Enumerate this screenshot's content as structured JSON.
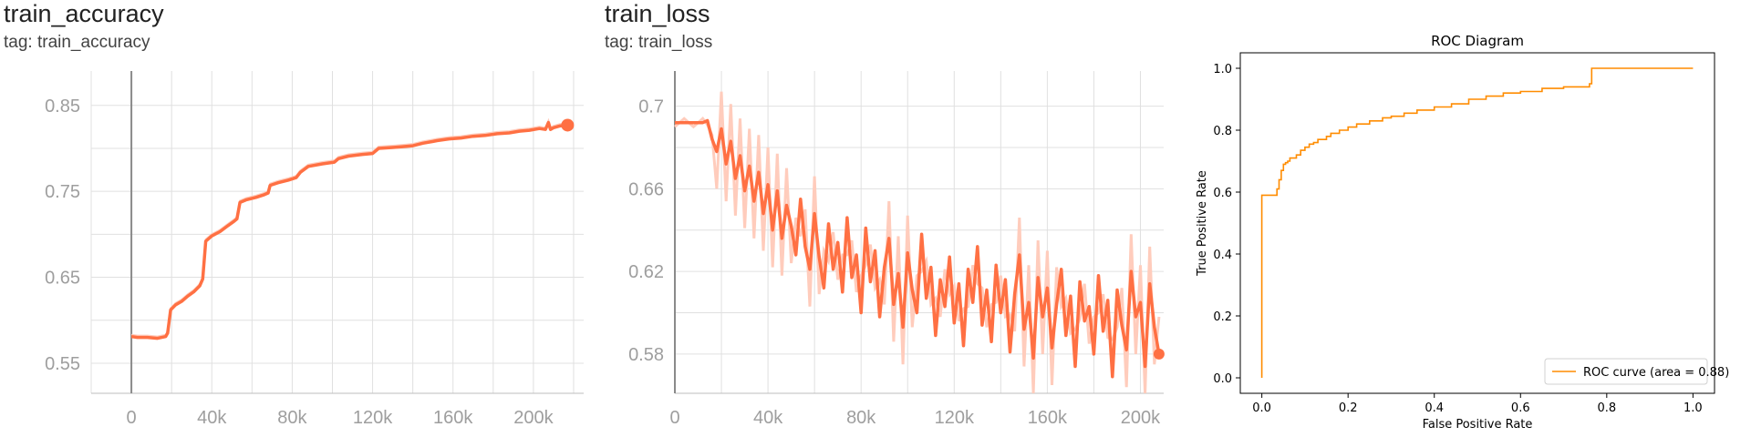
{
  "panels": {
    "accuracy": {
      "title": "train_accuracy",
      "tag": "tag: train_accuracy"
    },
    "loss": {
      "title": "train_loss",
      "tag": "tag: train_loss"
    }
  },
  "colors": {
    "tb_line": "#ff7043",
    "tb_raw": "#ffccbc",
    "roc": "#ff8c00",
    "grid": "#e0e0e0",
    "axis": "#9e9e9e"
  },
  "chart_data": [
    {
      "type": "line",
      "title": "train_accuracy",
      "subtitle": "tag: train_accuracy",
      "x_ticks": [
        0,
        40000,
        80000,
        120000,
        160000,
        200000
      ],
      "x_tick_labels": [
        "0",
        "40k",
        "80k",
        "120k",
        "160k",
        "200k"
      ],
      "y_ticks": [
        0.55,
        0.65,
        0.75,
        0.85
      ],
      "y_tick_labels": [
        "0.55",
        "0.65",
        "0.75",
        "0.85"
      ],
      "xlim": [
        -20000,
        225000
      ],
      "ylim": [
        0.515,
        0.89
      ],
      "grid": true,
      "series": [
        {
          "x": [
            0,
            3000,
            8000,
            13000,
            17000,
            18000,
            19500,
            22000,
            25000,
            28000,
            31000,
            34000,
            35500,
            37000,
            40000,
            44000,
            48000,
            51000,
            52500,
            54000,
            57000,
            62000,
            66000,
            68000,
            69000,
            73000,
            78000,
            82000,
            84000,
            88000,
            95000,
            101000,
            103000,
            108000,
            115000,
            120000,
            123000,
            130000,
            135000,
            140000,
            145000,
            150000,
            152000,
            158000,
            164000,
            170000,
            176000,
            182000,
            188000,
            193000,
            198000,
            203000,
            206000,
            207500,
            208500,
            210000,
            213000,
            217000
          ],
          "y": [
            0.581,
            0.58,
            0.58,
            0.579,
            0.581,
            0.585,
            0.612,
            0.618,
            0.622,
            0.628,
            0.633,
            0.64,
            0.648,
            0.692,
            0.698,
            0.703,
            0.71,
            0.715,
            0.718,
            0.737,
            0.74,
            0.743,
            0.746,
            0.748,
            0.757,
            0.76,
            0.763,
            0.766,
            0.772,
            0.779,
            0.782,
            0.784,
            0.788,
            0.791,
            0.793,
            0.794,
            0.8,
            0.801,
            0.802,
            0.803,
            0.806,
            0.808,
            0.809,
            0.811,
            0.812,
            0.814,
            0.815,
            0.817,
            0.818,
            0.82,
            0.821,
            0.823,
            0.822,
            0.83,
            0.822,
            0.824,
            0.826,
            0.827
          ]
        }
      ]
    },
    {
      "type": "line",
      "title": "train_loss",
      "subtitle": "tag: train_loss",
      "x_ticks": [
        0,
        40000,
        80000,
        120000,
        160000,
        200000
      ],
      "x_tick_labels": [
        "0",
        "40k",
        "80k",
        "120k",
        "160k",
        "200k"
      ],
      "y_ticks": [
        0.58,
        0.62,
        0.66,
        0.7
      ],
      "y_tick_labels": [
        "0.58",
        "0.62",
        "0.66",
        "0.7"
      ],
      "xlim": [
        0,
        210000
      ],
      "ylim": [
        0.561,
        0.717
      ],
      "grid": true,
      "series": [
        {
          "x": [
            0,
            4000,
            8000,
            12000,
            14000,
            16000,
            18000,
            20000,
            22000,
            24000,
            26000,
            28000,
            30000,
            32000,
            34000,
            36000,
            38000,
            40000,
            42000,
            44000,
            46000,
            48000,
            50000,
            52000,
            54000,
            56000,
            58000,
            60000,
            62000,
            64000,
            66000,
            68000,
            70000,
            72000,
            74000,
            76000,
            78000,
            80000,
            82000,
            84000,
            86000,
            88000,
            90000,
            92000,
            94000,
            96000,
            98000,
            100000,
            102000,
            104000,
            106000,
            108000,
            110000,
            112000,
            114000,
            116000,
            118000,
            120000,
            122000,
            124000,
            126000,
            128000,
            130000,
            132000,
            134000,
            136000,
            138000,
            140000,
            142000,
            144000,
            146000,
            148000,
            150000,
            152000,
            154000,
            156000,
            158000,
            160000,
            162000,
            164000,
            166000,
            168000,
            170000,
            172000,
            174000,
            176000,
            178000,
            180000,
            182000,
            184000,
            186000,
            188000,
            190000,
            192000,
            194000,
            196000,
            198000,
            200000,
            202000,
            204000,
            206000,
            208000
          ],
          "y": [
            0.692,
            0.692,
            0.692,
            0.692,
            0.693,
            0.684,
            0.678,
            0.689,
            0.672,
            0.683,
            0.665,
            0.676,
            0.659,
            0.671,
            0.654,
            0.668,
            0.648,
            0.662,
            0.64,
            0.659,
            0.636,
            0.652,
            0.642,
            0.628,
            0.655,
            0.632,
            0.621,
            0.648,
            0.627,
            0.612,
            0.643,
            0.621,
            0.634,
            0.61,
            0.646,
            0.617,
            0.628,
            0.6,
            0.641,
            0.615,
            0.63,
            0.598,
            0.622,
            0.636,
            0.604,
            0.619,
            0.593,
            0.629,
            0.611,
            0.6,
            0.638,
            0.607,
            0.622,
            0.589,
            0.616,
            0.603,
            0.627,
            0.595,
            0.614,
            0.584,
            0.621,
            0.605,
            0.632,
            0.594,
            0.611,
            0.586,
            0.623,
            0.6,
            0.616,
            0.581,
            0.609,
            0.628,
            0.592,
            0.605,
            0.578,
            0.617,
            0.598,
            0.612,
            0.583,
            0.604,
            0.621,
            0.589,
            0.608,
            0.574,
            0.615,
            0.596,
            0.603,
            0.58,
            0.618,
            0.591,
            0.606,
            0.569,
            0.611,
            0.594,
            0.582,
            0.62,
            0.598,
            0.605,
            0.574,
            0.614,
            0.593,
            0.58
          ]
        }
      ]
    },
    {
      "type": "line",
      "title": "ROC Diagram",
      "xlabel": "False Positive Rate",
      "ylabel": "True Positive Rate",
      "xlim": [
        -0.05,
        1.05
      ],
      "ylim": [
        -0.05,
        1.05
      ],
      "x_ticks": [
        0.0,
        0.2,
        0.4,
        0.6,
        0.8,
        1.0
      ],
      "x_tick_labels": [
        "0.0",
        "0.2",
        "0.4",
        "0.6",
        "0.8",
        "1.0"
      ],
      "y_ticks": [
        0.0,
        0.2,
        0.4,
        0.6,
        0.8,
        1.0
      ],
      "y_tick_labels": [
        "0.0",
        "0.2",
        "0.4",
        "0.6",
        "0.8",
        "1.0"
      ],
      "grid": false,
      "legend": "lower-right",
      "series": [
        {
          "name": "ROC curve (area = 0.88)",
          "x": [
            0.0,
            0.0,
            0.035,
            0.035,
            0.04,
            0.045,
            0.05,
            0.055,
            0.06,
            0.065,
            0.08,
            0.09,
            0.1,
            0.11,
            0.12,
            0.13,
            0.15,
            0.16,
            0.18,
            0.2,
            0.22,
            0.25,
            0.28,
            0.3,
            0.33,
            0.36,
            0.4,
            0.44,
            0.48,
            0.52,
            0.56,
            0.6,
            0.65,
            0.7,
            0.76,
            0.765,
            0.8,
            1.0
          ],
          "y": [
            0.0,
            0.59,
            0.59,
            0.61,
            0.64,
            0.67,
            0.69,
            0.695,
            0.7,
            0.71,
            0.72,
            0.735,
            0.745,
            0.755,
            0.76,
            0.77,
            0.78,
            0.79,
            0.8,
            0.81,
            0.82,
            0.83,
            0.84,
            0.845,
            0.855,
            0.865,
            0.875,
            0.885,
            0.9,
            0.91,
            0.92,
            0.925,
            0.935,
            0.94,
            0.95,
            1.0,
            1.0,
            1.0
          ]
        }
      ]
    }
  ]
}
